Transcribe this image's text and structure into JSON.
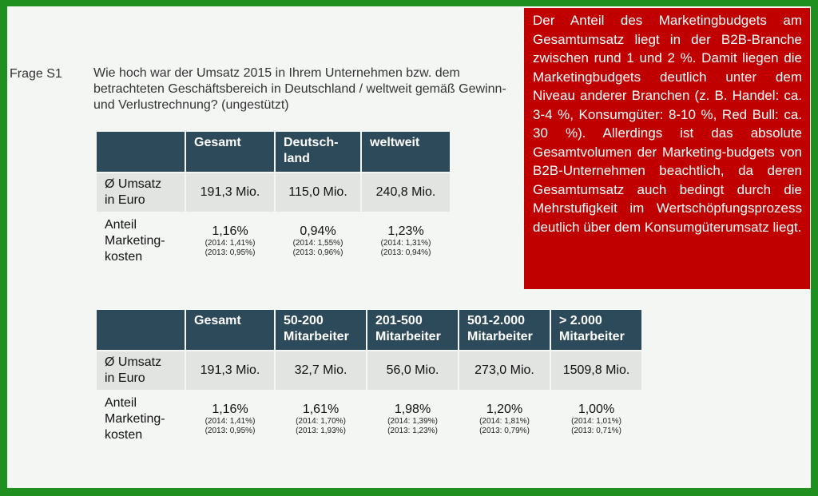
{
  "frage_label": "Frage S1",
  "question": "Wie hoch war der Umsatz 2015 in Ihrem Unternehmen bzw. dem betrachteten Geschäftsbereich in Deutschland / weltweit gemäß Gewinn- und Verlustrechnung? (ungestützt)",
  "callout": "Der Anteil des Marketingbudgets am Gesamtumsatz liegt in der B2B-Branche zwischen rund 1 und 2 %. Damit liegen die Marketingbudgets deutlich unter dem Niveau anderer Branchen (z. B. Handel: ca. 3-4 %, Konsumgüter: 8-10 %, Red Bull: ca. 30 %). Allerdings ist das absolute Gesamtvolumen der Marketing-budgets von B2B-Unternehmen beachtlich, da deren Gesamtumsatz auch bedingt durch die Mehrstufigkeit im Wertschöpfungsprozess deutlich über dem Konsumgüterumsatz liegt.",
  "table1": {
    "headers": [
      "Gesamt",
      "Deutsch-\nland",
      "weltweit"
    ],
    "row_labels": [
      "Ø Umsatz\nin Euro",
      "Anteil\nMarketing-\nkosten"
    ],
    "umsatz": [
      "191,3 Mio.",
      "115,0 Mio.",
      "240,8 Mio."
    ],
    "anteil": [
      {
        "value": "1,16%",
        "y2014": "(2014: 1,41%)",
        "y2013": "(2013: 0,95%)"
      },
      {
        "value": "0,94%",
        "y2014": "(2014: 1,55%)",
        "y2013": "(2013: 0,96%)"
      },
      {
        "value": "1,23%",
        "y2014": "(2014: 1,31%)",
        "y2013": "(2013: 0,94%)"
      }
    ]
  },
  "table2": {
    "headers": [
      "Gesamt",
      "50-200\nMitarbeiter",
      "201-500\nMitarbeiter",
      "501-2.000\nMitarbeiter",
      "> 2.000\nMitarbeiter"
    ],
    "row_labels": [
      "Ø Umsatz\nin Euro",
      "Anteil\nMarketing-\nkosten"
    ],
    "umsatz": [
      "191,3 Mio.",
      "32,7 Mio.",
      "56,0 Mio.",
      "273,0 Mio.",
      "1509,8 Mio."
    ],
    "anteil": [
      {
        "value": "1,16%",
        "y2014": "(2014: 1,41%)",
        "y2013": "(2013: 0,95%)"
      },
      {
        "value": "1,61%",
        "y2014": "(2014: 1,70%)",
        "y2013": "(2013: 1,93%)"
      },
      {
        "value": "1,98%",
        "y2014": "(2014: 1,39%)",
        "y2013": "(2013: 1,23%)"
      },
      {
        "value": "1,20%",
        "y2014": "(2014: 1,81%)",
        "y2013": "(2013: 0,79%)"
      },
      {
        "value": "1,00%",
        "y2014": "(2014: 1,01%)",
        "y2013": "(2013: 0,71%)"
      }
    ]
  },
  "colors": {
    "frame": "#1f8f1f",
    "header_bg": "#2d4a5b",
    "callout_bg": "#c00000"
  }
}
